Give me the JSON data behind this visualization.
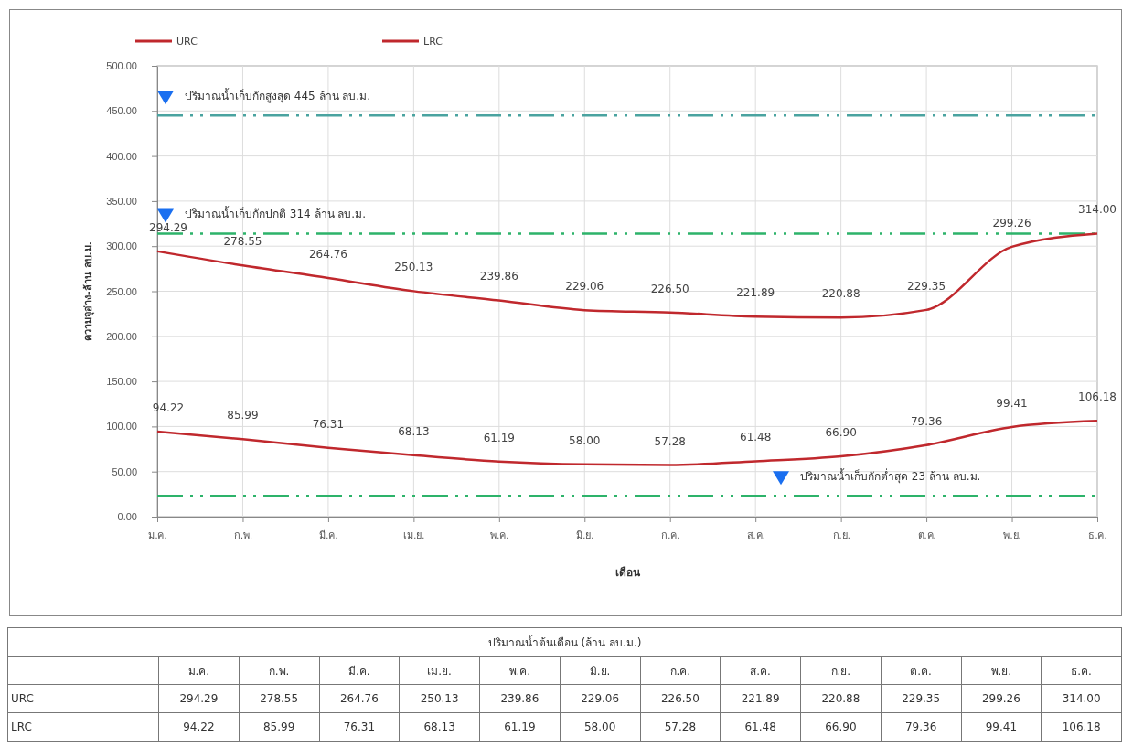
{
  "chart_data": {
    "type": "line",
    "xlabel": "เดือน",
    "ylabel": "ความจุอ่าง-ล้าน ลบ.ม.",
    "categories": [
      "ม.ค.",
      "ก.พ.",
      "มี.ค.",
      "เม.ย.",
      "พ.ค.",
      "มิ.ย.",
      "ก.ค.",
      "ส.ค.",
      "ก.ย.",
      "ต.ค.",
      "พ.ย.",
      "ธ.ค."
    ],
    "series": [
      {
        "name": "URC",
        "color": "#c0282d",
        "values": [
          294.29,
          278.55,
          264.76,
          250.13,
          239.86,
          229.06,
          226.5,
          221.89,
          220.88,
          229.35,
          299.26,
          314.0
        ],
        "value_labels": [
          "294.29",
          "278.55",
          "264.76",
          "250.13",
          "239.86",
          "229.06",
          "226.50",
          "221.89",
          "220.88",
          "229.35",
          "299.26",
          "314.00"
        ]
      },
      {
        "name": "LRC",
        "color": "#c0282d",
        "values": [
          94.22,
          85.99,
          76.31,
          68.13,
          61.19,
          58.0,
          57.28,
          61.48,
          66.9,
          79.36,
          99.41,
          106.18
        ],
        "value_labels": [
          "94.22",
          "85.99",
          "76.31",
          "68.13",
          "61.19",
          "58.00",
          "57.28",
          "61.48",
          "66.90",
          "79.36",
          "99.41",
          "106.18"
        ]
      }
    ],
    "ylim": [
      0,
      500
    ],
    "yticks": [
      {
        "value": 0,
        "label": "0.00"
      },
      {
        "value": 50,
        "label": "50.00"
      },
      {
        "value": 100,
        "label": "100.00"
      },
      {
        "value": 150,
        "label": "150.00"
      },
      {
        "value": 200,
        "label": "200.00"
      },
      {
        "value": 250,
        "label": "250.00"
      },
      {
        "value": 300,
        "label": "300.00"
      },
      {
        "value": 350,
        "label": "350.00"
      },
      {
        "value": 400,
        "label": "400.00"
      },
      {
        "value": 450,
        "label": "450.00"
      },
      {
        "value": 500,
        "label": "500.00"
      }
    ],
    "ref_lines": [
      {
        "axis": "y",
        "value": 445,
        "label": "ปริมาณน้ำเก็บกักสูงสุด  445 ล้าน ลบ.ม.",
        "color": "#4aa3a0",
        "line_style": "dashed"
      },
      {
        "axis": "y",
        "value": 314,
        "label": "ปริมาณน้ำเก็บกักปกติ 314 ล้าน ลบ.ม.",
        "color": "#2db36a",
        "line_style": "dashed"
      },
      {
        "axis": "y",
        "value": 23,
        "label": "ปริมาณน้ำเก็บกักต่ำสุด 23 ล้าน ลบ.ม.",
        "color": "#2db36a",
        "line_style": "dashed"
      }
    ],
    "annotations": [
      "ปริมาณน้ำต้นเดือน (ล้าน ลบ.ม.)"
    ],
    "grid": true,
    "legend": "top",
    "marker": "none",
    "line_style": "solid"
  }
}
